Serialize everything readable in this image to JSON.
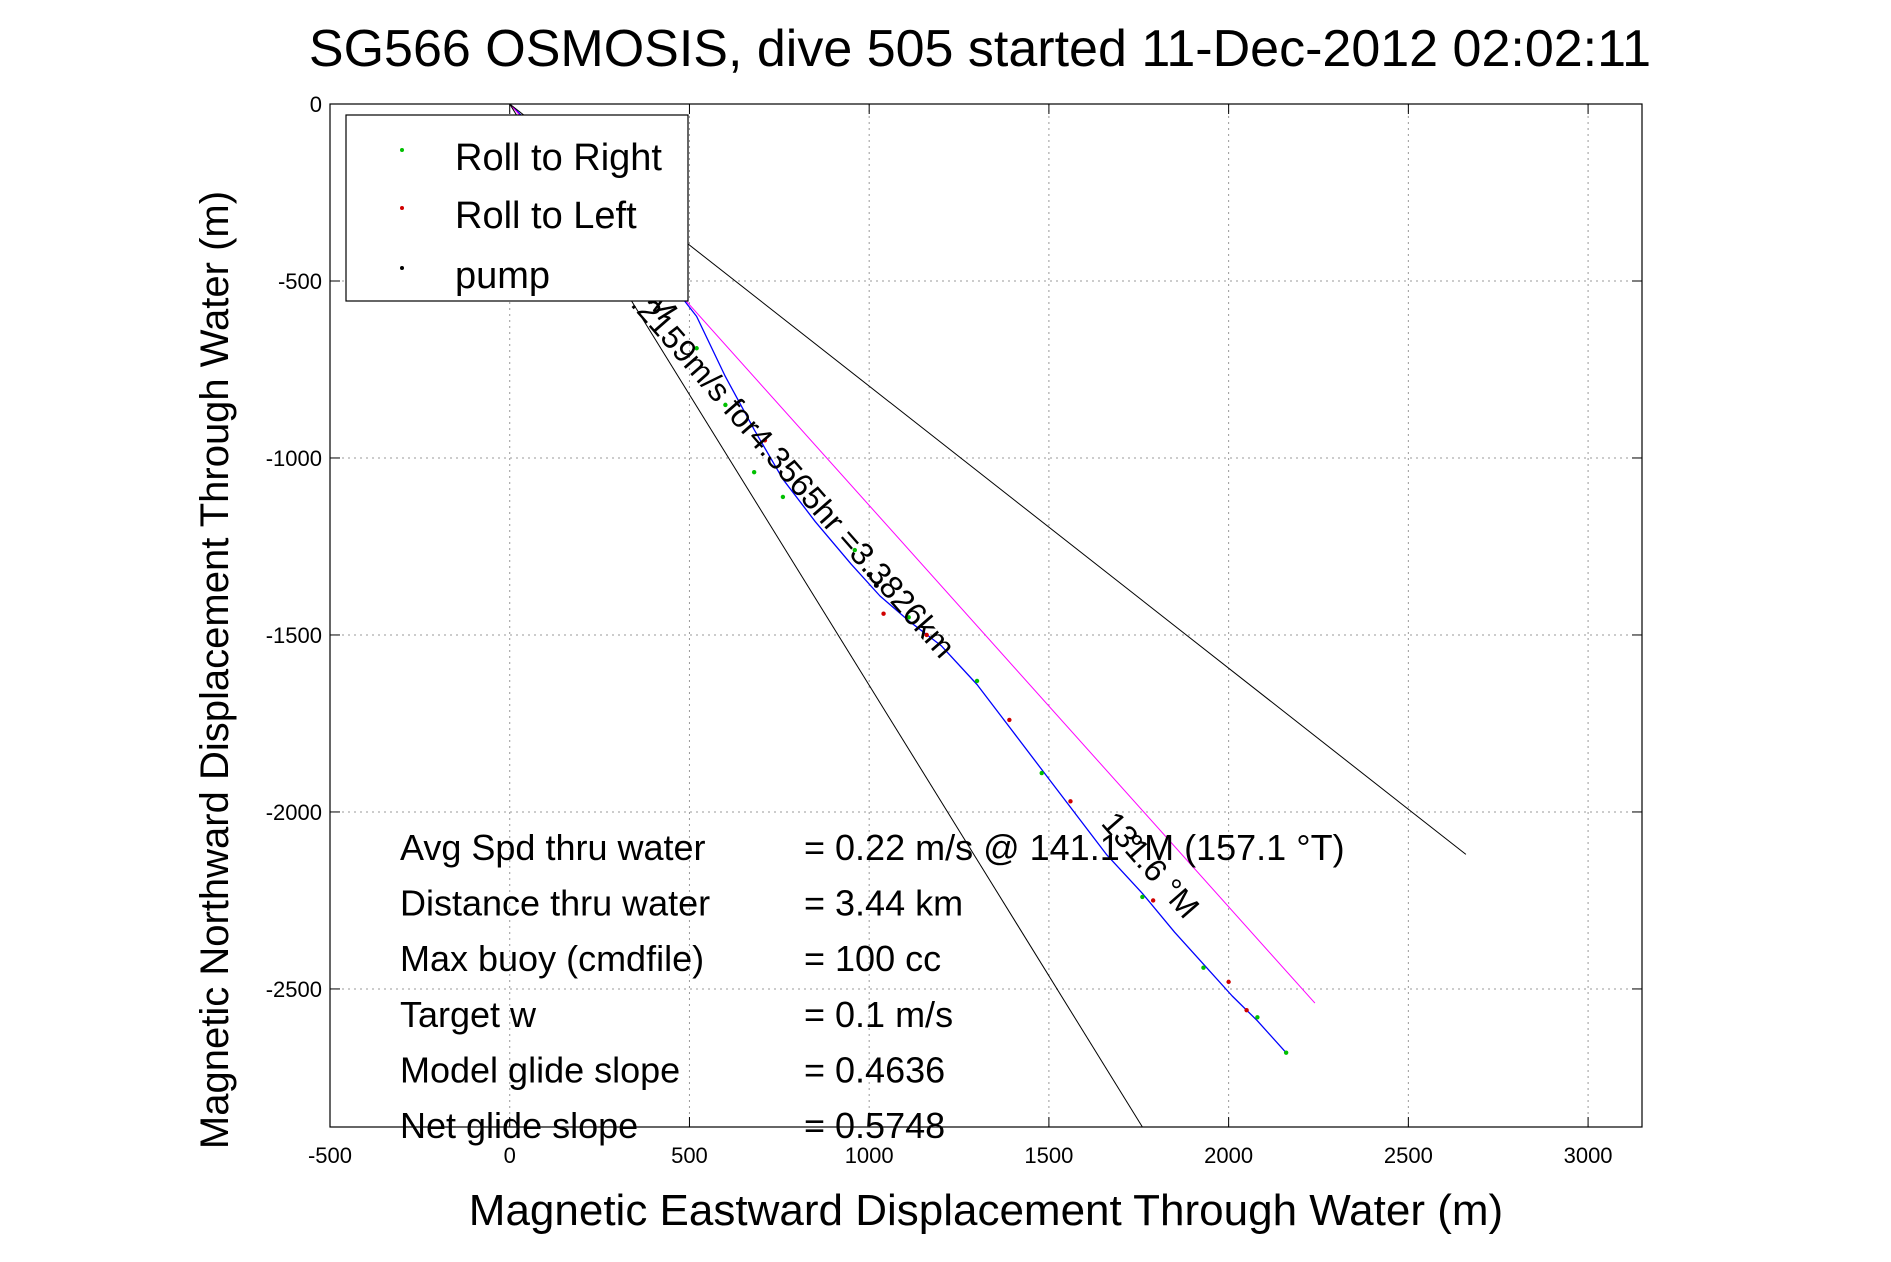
{
  "chart_data": {
    "type": "line",
    "title": "SG566 OSMOSIS, dive 505 started 11-Dec-2012 02:02:11",
    "xlabel": "Magnetic Eastward Displacement Through Water (m)",
    "ylabel": "Magnetic Northward Displacement Through Water (m)",
    "xlim": [
      -500,
      3150
    ],
    "ylim": [
      -2890,
      0
    ],
    "xticks": [
      -500,
      0,
      500,
      1000,
      1500,
      2000,
      2500,
      3000
    ],
    "yticks": [
      0,
      -500,
      -1000,
      -1500,
      -2000,
      -2500
    ],
    "grid": true,
    "legend": {
      "position": "top-left",
      "entries": [
        {
          "label": "Roll to Right",
          "color": "#00c000"
        },
        {
          "label": "Roll to Left",
          "color": "#d00000"
        },
        {
          "label": "pump",
          "color": "#000000"
        }
      ]
    },
    "series": [
      {
        "style": "track",
        "color": "#0000ff",
        "x": [
          0,
          150,
          300,
          420,
          520,
          600,
          680,
          760,
          850,
          950,
          1030,
          1110,
          1200,
          1300,
          1390,
          1480,
          1570,
          1660,
          1760,
          1850,
          1930,
          2010,
          2080,
          2160
        ],
        "y": [
          0,
          -150,
          -320,
          -470,
          -600,
          -770,
          -920,
          -1060,
          -1180,
          -1300,
          -1390,
          -1460,
          -1530,
          -1640,
          -1760,
          -1880,
          -2000,
          -2120,
          -2230,
          -2340,
          -2430,
          -2520,
          -2590,
          -2680
        ]
      },
      {
        "style": "heading-line",
        "color": "#ff00ff",
        "x": [
          0,
          2240
        ],
        "y": [
          0,
          -2540
        ]
      },
      {
        "style": "bound",
        "color": "#000000",
        "x": [
          0,
          1760
        ],
        "y": [
          0,
          -2890
        ]
      },
      {
        "style": "bound",
        "color": "#000000",
        "x": [
          0,
          2660
        ],
        "y": [
          0,
          -2120
        ]
      }
    ],
    "markers": {
      "roll_right": {
        "color": "#00c000",
        "x": [
          520,
          600,
          680,
          760,
          960,
          1110,
          1300,
          1480,
          1760,
          1930,
          2080,
          2160
        ],
        "y": [
          -690,
          -850,
          -1040,
          -1110,
          -1260,
          -1450,
          -1630,
          -1890,
          -2240,
          -2440,
          -2580,
          -2680
        ]
      },
      "roll_left": {
        "color": "#d00000",
        "x": [
          710,
          1040,
          1160,
          1390,
          1560,
          1790,
          2000,
          2050
        ],
        "y": [
          -950,
          -1440,
          -1500,
          -1740,
          -1970,
          -2250,
          -2480,
          -2560
        ]
      },
      "pump": {
        "color": "#000000",
        "x": [
          1000,
          1020
        ],
        "y": [
          -1330,
          -1360
        ]
      }
    },
    "annotations": [
      {
        "text": "0.2159m/s for4.3565hr =3.3826km",
        "x": 750,
        "y": -1050,
        "rotation": 48.8
      },
      {
        "text": "131.6 °M",
        "x": 1760,
        "y": -2170,
        "rotation": 48.8
      },
      {
        "text": "°M",
        "x": 390,
        "y": -570,
        "rotation": 58
      }
    ],
    "stats": [
      {
        "label": "Avg Spd thru water",
        "value": "=  0.22 m/s @ 141.1 °M (157.1 °T)"
      },
      {
        "label": "Distance thru water",
        "value": "=  3.44 km"
      },
      {
        "label": "Max buoy (cmdfile)",
        "value": "= 100 cc"
      },
      {
        "label": "Target w",
        "value": "= 0.1 m/s"
      },
      {
        "label": "Model glide slope",
        "value": "= 0.4636"
      },
      {
        "label": "Net glide slope",
        "value": "= 0.5748"
      }
    ]
  }
}
